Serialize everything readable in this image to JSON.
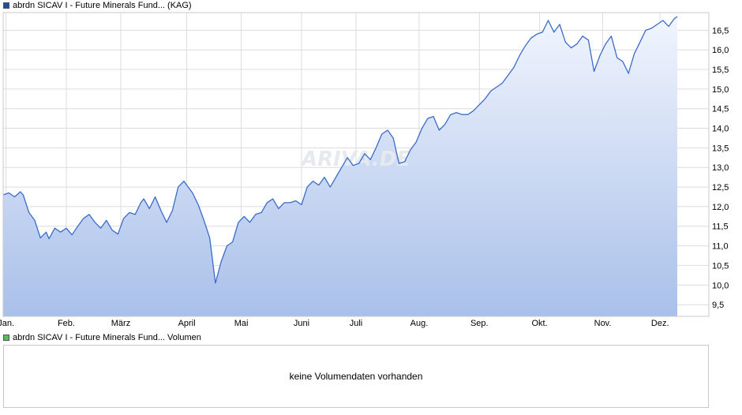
{
  "price_legend": {
    "label": "abrdn SICAV I - Future Minerals Fund... (KAG)",
    "color": "#1f4e9c"
  },
  "volume_legend": {
    "label": "abrdn SICAV I - Future Minerals Fund... Volumen",
    "color": "#5cb85c"
  },
  "volume_panel": {
    "message": "keine Volumendaten vorhanden"
  },
  "watermark": "ARIVA.DE",
  "chart_data": {
    "type": "area",
    "title": "abrdn SICAV I - Future Minerals Fund... (KAG)",
    "ylim": [
      9.2,
      16.95
    ],
    "yticks": [
      9.5,
      10.0,
      10.5,
      11.0,
      11.5,
      12.0,
      12.5,
      13.0,
      13.5,
      14.0,
      14.5,
      15.0,
      15.5,
      16.0,
      16.5
    ],
    "ytick_labels": [
      "9,5",
      "10,0",
      "10,5",
      "11,0",
      "11,5",
      "12,0",
      "12,5",
      "13,0",
      "13,5",
      "14,0",
      "14,5",
      "15,0",
      "15,5",
      "16,0",
      "16,5"
    ],
    "months": [
      "Jan.",
      "Feb.",
      "März",
      "April",
      "Mai",
      "Juni",
      "Juli",
      "Aug.",
      "Sep.",
      "Okt.",
      "Nov.",
      "Dez."
    ],
    "month_positions": [
      1,
      22,
      41,
      64,
      83,
      104,
      123,
      145,
      166,
      187,
      209,
      229
    ],
    "grid": true,
    "line_color": "#3a6bc8",
    "fill_top_color": "#f1f5fd",
    "fill_bottom_color": "#a9c0ea",
    "x_max": 246,
    "series": [
      {
        "x": [
          0,
          2,
          4,
          6,
          7,
          9,
          11,
          13,
          15,
          16,
          18,
          20,
          22,
          24,
          26,
          28,
          30,
          32,
          34,
          36,
          38,
          40,
          42,
          44,
          46,
          48,
          49,
          51,
          53,
          55,
          57,
          59,
          61,
          63,
          64,
          66,
          68,
          70,
          72,
          74,
          76,
          78,
          80,
          82,
          84,
          86,
          88,
          90,
          92,
          94,
          96,
          98,
          100,
          102,
          104,
          106,
          108,
          110,
          112,
          114,
          116,
          118,
          120,
          122,
          124,
          126,
          128,
          130,
          132,
          134,
          136,
          138,
          140,
          142,
          144,
          146,
          148,
          150,
          152,
          154,
          156,
          158,
          160,
          162,
          164,
          166,
          168,
          170,
          172,
          174,
          176,
          178,
          180,
          182,
          184,
          186,
          188,
          190,
          192,
          194,
          196,
          198,
          200,
          202,
          204,
          206,
          208,
          210,
          212,
          214,
          216,
          218,
          220,
          222,
          224,
          226,
          228,
          230,
          232,
          234,
          235
        ],
        "values": [
          12.3,
          12.35,
          12.25,
          12.38,
          12.3,
          11.85,
          11.65,
          11.2,
          11.35,
          11.18,
          11.45,
          11.35,
          11.45,
          11.28,
          11.5,
          11.7,
          11.8,
          11.6,
          11.45,
          11.65,
          11.4,
          11.3,
          11.7,
          11.85,
          11.8,
          12.1,
          12.2,
          11.95,
          12.25,
          11.9,
          11.6,
          11.9,
          12.5,
          12.65,
          12.55,
          12.35,
          12.05,
          11.65,
          11.2,
          10.05,
          10.6,
          11.0,
          11.1,
          11.6,
          11.75,
          11.6,
          11.8,
          11.85,
          12.1,
          12.2,
          11.95,
          12.1,
          12.1,
          12.15,
          12.05,
          12.5,
          12.65,
          12.55,
          12.75,
          12.5,
          12.75,
          13.0,
          13.25,
          13.05,
          13.1,
          13.35,
          13.2,
          13.5,
          13.85,
          13.95,
          13.75,
          13.1,
          13.15,
          13.45,
          13.65,
          14.0,
          14.25,
          14.3,
          13.95,
          14.1,
          14.35,
          14.4,
          14.35,
          14.35,
          14.45,
          14.6,
          14.75,
          14.95,
          15.05,
          15.15,
          15.35,
          15.55,
          15.85,
          16.1,
          16.3,
          16.4,
          16.45,
          16.75,
          16.45,
          16.65,
          16.2,
          16.05,
          16.15,
          16.35,
          16.25,
          15.45,
          15.85,
          16.15,
          16.35,
          15.8,
          15.7,
          15.4,
          15.9,
          16.2,
          16.5,
          16.55,
          16.65,
          16.75,
          16.6,
          16.8,
          16.85
        ]
      }
    ]
  }
}
